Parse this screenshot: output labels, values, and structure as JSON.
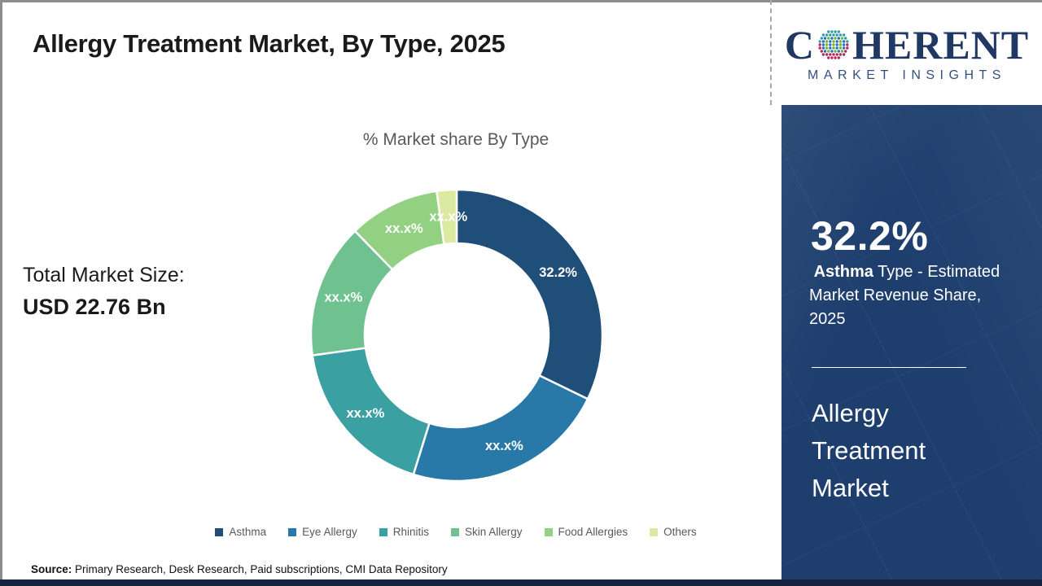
{
  "header": {
    "title": "Allergy Treatment Market, By Type, 2025"
  },
  "logo": {
    "word_pre": "C",
    "word_post": "HERENT",
    "subtitle": "MARKET INSIGHTS",
    "text_color": "#1f3864",
    "globe_colors": [
      "#2f9daa",
      "#b02a5c",
      "#6fb43f",
      "#2f6eb6"
    ]
  },
  "left_panel": {
    "total_label": "Total Market Size:",
    "total_value": "USD 22.76 Bn"
  },
  "chart_data": {
    "type": "pie",
    "subtype": "donut",
    "title": "% Market share By Type",
    "categories": [
      "Asthma",
      "Eye Allergy",
      "Rhinitis",
      "Skin Allergy",
      "Food Allergies",
      "Others"
    ],
    "values": [
      32.2,
      22.6,
      18.0,
      14.9,
      10.1,
      2.2
    ],
    "displayed_labels": [
      "32.2%",
      "xx.x%",
      "xx.x%",
      "xx.x%",
      "xx.x%",
      "xx.x%"
    ],
    "colors": [
      "#1f4e79",
      "#2878a8",
      "#3ba0a1",
      "#6fc28f",
      "#92d182",
      "#dce9a0"
    ],
    "start_angle_deg": 0,
    "direction": "clockwise",
    "donut_hole_ratio": 0.63,
    "slice_gap_color": "#ffffff",
    "legend_position": "bottom"
  },
  "sidebar": {
    "bg_color": "#1e3f6e",
    "stat_value": "32.2%",
    "stat_desc_bold": " Asthma",
    "stat_desc_rest": " Type - Estimated Market Revenue Share, 2025",
    "market_name": "Allergy Treatment Market"
  },
  "footer": {
    "source_label": "Source:",
    "source_text": " Primary Research, Desk Research, Paid subscriptions, CMI Data Repository"
  }
}
